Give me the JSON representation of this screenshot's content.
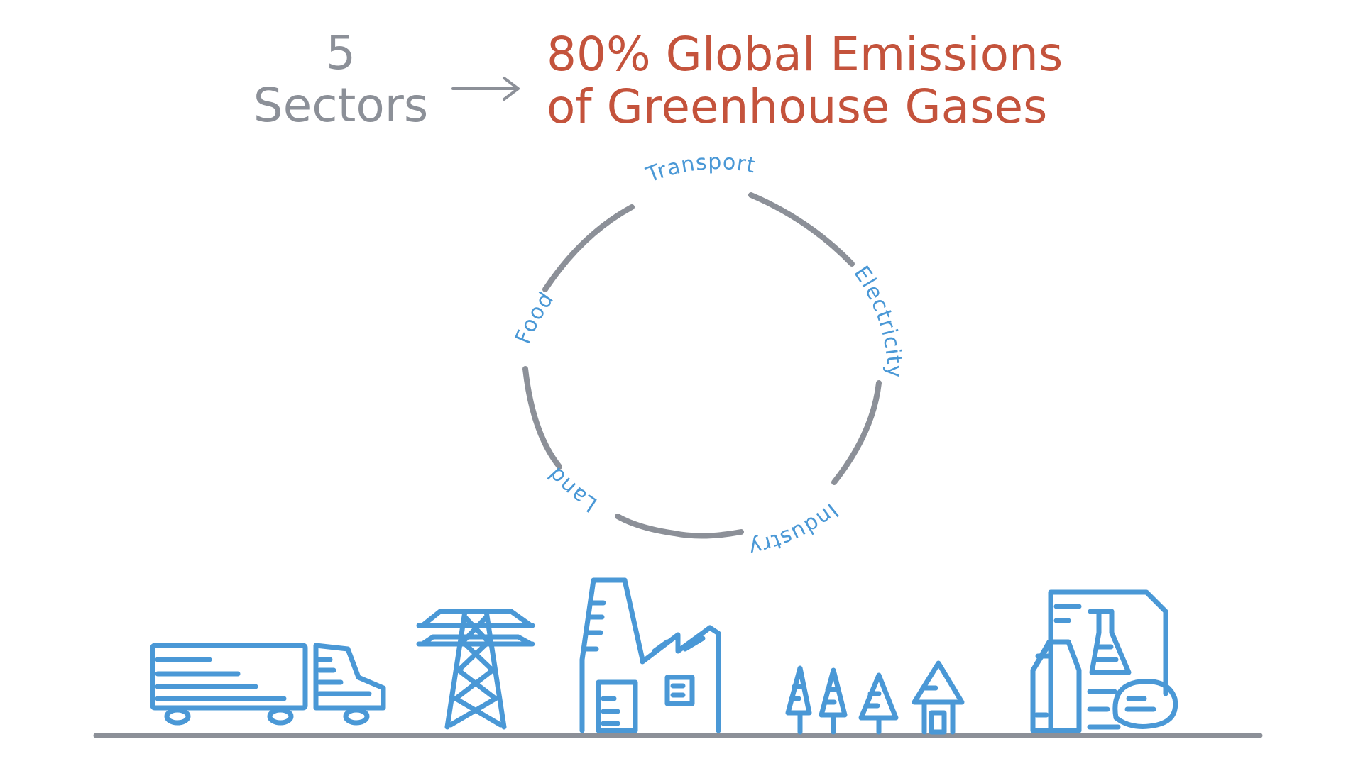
{
  "heading": {
    "count": "5",
    "count_label": "Sectors",
    "result_line1": "80% Global Emissions",
    "result_line2": "of Greenhouse Gases"
  },
  "cycle": {
    "sectors": [
      "Transport",
      "Electricity",
      "Industry",
      "Land",
      "Food"
    ]
  },
  "colors": {
    "gray": "#8c9098",
    "red": "#c4533c",
    "blue": "#4a98d6"
  },
  "icons": [
    "truck-icon",
    "power-pylon-icon",
    "factory-icon",
    "trees-and-house-icon",
    "food-products-icon"
  ]
}
